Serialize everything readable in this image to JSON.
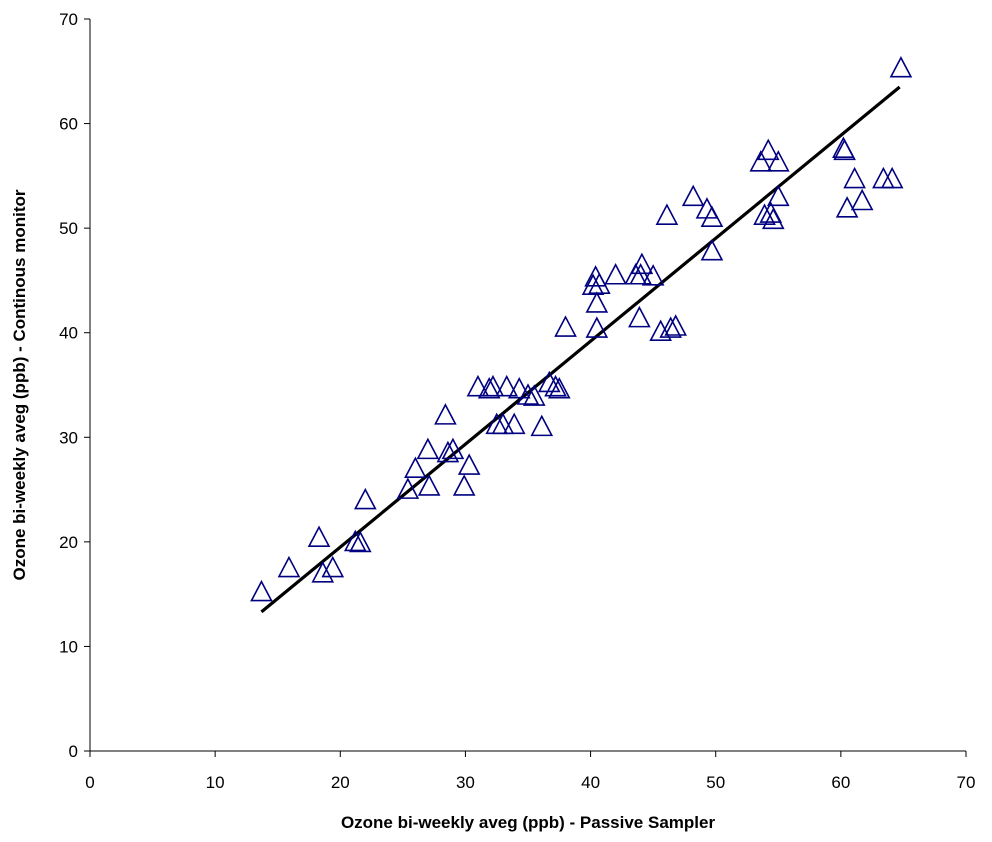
{
  "chart_data": {
    "type": "scatter",
    "title": "",
    "xlabel": "Ozone bi-weekly aveg (ppb) - Passive Sampler",
    "ylabel": "Ozone bi-weekly aveg (ppb) - Continous monitor",
    "xlim": [
      0,
      70
    ],
    "ylim": [
      0,
      70
    ],
    "xticks": [
      0,
      10,
      20,
      30,
      40,
      50,
      60,
      70
    ],
    "yticks": [
      0,
      10,
      20,
      30,
      40,
      50,
      60,
      70
    ],
    "grid": false,
    "legend": "none",
    "marker": "open-triangle",
    "colors": {
      "marker": "#000080",
      "trendline": "#000000"
    },
    "series": [
      {
        "points": [
          [
            13.7,
            15.2
          ],
          [
            15.9,
            17.5
          ],
          [
            18.3,
            20.4
          ],
          [
            18.6,
            17.0
          ],
          [
            19.4,
            17.5
          ],
          [
            21.2,
            20.0
          ],
          [
            21.6,
            19.9
          ],
          [
            22.0,
            24.0
          ],
          [
            25.4,
            25.0
          ],
          [
            26.0,
            27.0
          ],
          [
            27.0,
            28.8
          ],
          [
            27.1,
            25.3
          ],
          [
            28.4,
            32.1
          ],
          [
            28.6,
            28.5
          ],
          [
            29.0,
            28.8
          ],
          [
            29.9,
            25.3
          ],
          [
            30.3,
            27.3
          ],
          [
            31.0,
            34.8
          ],
          [
            31.9,
            34.6
          ],
          [
            32.2,
            34.8
          ],
          [
            32.5,
            31.2
          ],
          [
            33.0,
            31.2
          ],
          [
            33.3,
            34.8
          ],
          [
            33.9,
            31.2
          ],
          [
            34.3,
            34.6
          ],
          [
            35.0,
            34.0
          ],
          [
            35.5,
            33.9
          ],
          [
            36.1,
            31.0
          ],
          [
            36.7,
            35.2
          ],
          [
            37.2,
            34.8
          ],
          [
            37.5,
            34.6
          ],
          [
            38.0,
            40.5
          ],
          [
            40.2,
            44.5
          ],
          [
            40.4,
            45.3
          ],
          [
            40.5,
            42.8
          ],
          [
            40.5,
            40.4
          ],
          [
            40.7,
            44.6
          ],
          [
            42.0,
            45.5
          ],
          [
            43.6,
            45.5
          ],
          [
            43.9,
            41.4
          ],
          [
            44.0,
            45.5
          ],
          [
            44.1,
            46.5
          ],
          [
            45.0,
            45.4
          ],
          [
            45.6,
            40.1
          ],
          [
            46.1,
            51.2
          ],
          [
            46.4,
            40.4
          ],
          [
            46.8,
            40.6
          ],
          [
            48.2,
            53.0
          ],
          [
            49.3,
            51.8
          ],
          [
            49.7,
            51.0
          ],
          [
            49.7,
            47.8
          ],
          [
            53.6,
            56.3
          ],
          [
            53.9,
            51.2
          ],
          [
            54.2,
            57.4
          ],
          [
            54.4,
            51.4
          ],
          [
            54.6,
            50.8
          ],
          [
            55.0,
            56.3
          ],
          [
            55.0,
            53.0
          ],
          [
            60.2,
            57.6
          ],
          [
            60.3,
            57.4
          ],
          [
            60.5,
            51.9
          ],
          [
            61.1,
            54.7
          ],
          [
            61.7,
            52.6
          ],
          [
            63.4,
            54.7
          ],
          [
            64.1,
            54.7
          ],
          [
            64.8,
            65.3
          ]
        ]
      }
    ],
    "trendline": {
      "x": [
        13.7,
        64.7
      ],
      "y": [
        13.3,
        63.5
      ]
    }
  }
}
